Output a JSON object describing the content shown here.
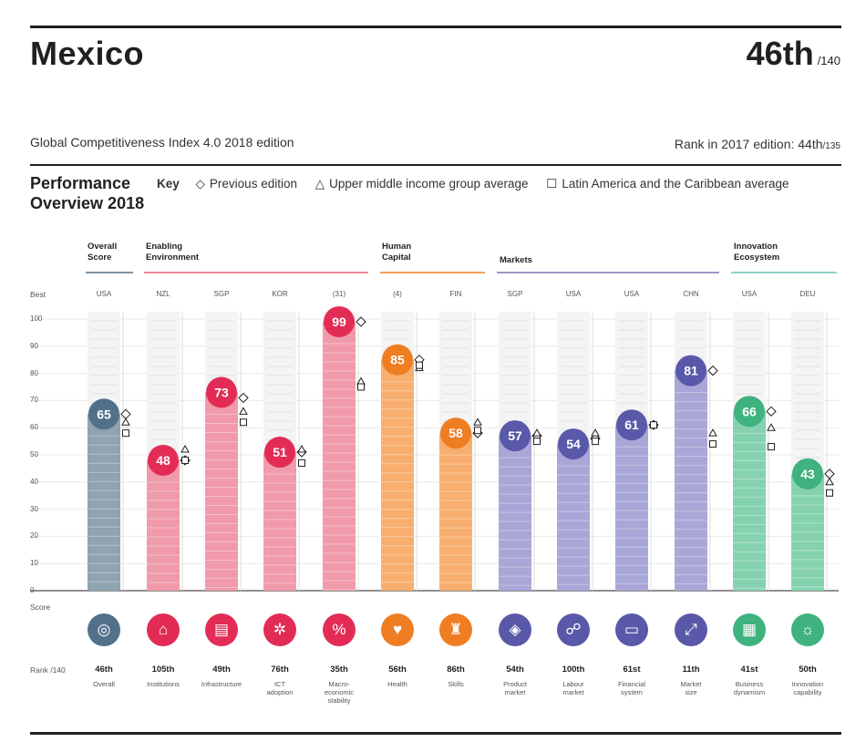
{
  "header": {
    "country": "Mexico",
    "rank": "46th",
    "rank_of": "/140",
    "edition": "Global Competitiveness Index 4.0 2018 edition",
    "prev_rank_label": "Rank in 2017 edition: 44th",
    "prev_rank_of": "/135"
  },
  "overview": {
    "title_line1": "Performance",
    "title_line2": "Overview 2018",
    "key_label": "Key",
    "key_items": [
      "Previous edition",
      "Upper middle income group average",
      "Latin America and the Caribbean average"
    ]
  },
  "groups": [
    {
      "label_line1": "Overall",
      "label_line2": "Score",
      "color": "#7f95a6"
    },
    {
      "label_line1": "Enabling",
      "label_line2": "Environment",
      "color": "#e88a9b"
    },
    {
      "label_line1": "Human",
      "label_line2": "Capital",
      "color": "#f0a15c"
    },
    {
      "label_line1": "Markets",
      "label_line2": "",
      "color": "#9b98c9"
    },
    {
      "label_line1": "Innovation",
      "label_line2": "Ecosystem",
      "color": "#8fd1c6"
    }
  ],
  "left_labels": {
    "best": "Best",
    "score": "Score",
    "rank": "Rank /140"
  },
  "chart_data": {
    "type": "bar",
    "ylim": [
      0,
      100
    ],
    "yticks": [
      "100",
      "90",
      "80",
      "70",
      "60",
      "50",
      "40",
      "30",
      "20",
      "10",
      "0"
    ],
    "categories": [
      "Overall",
      "Institutions",
      "Infrastructure",
      "ICT adoption",
      "Macro-economic stability",
      "Health",
      "Skills",
      "Product market",
      "Labour market",
      "Financial system",
      "Market size",
      "Business dynamism",
      "Innovation capability"
    ],
    "category_lines": [
      [
        "Overall"
      ],
      [
        "Institutions"
      ],
      [
        "Infrastructure"
      ],
      [
        "ICT",
        "adoption"
      ],
      [
        "Macro-",
        "economic",
        "stability"
      ],
      [
        "Health"
      ],
      [
        "Skills"
      ],
      [
        "Product",
        "market"
      ],
      [
        "Labour",
        "market"
      ],
      [
        "Financial",
        "system"
      ],
      [
        "Market",
        "size"
      ],
      [
        "Business",
        "dynamism"
      ],
      [
        "Innovation",
        "capability"
      ]
    ],
    "best": [
      "USA",
      "NZL",
      "SGP",
      "KOR",
      "(31)",
      "(4)",
      "FIN",
      "SGP",
      "USA",
      "USA",
      "CHN",
      "USA",
      "DEU"
    ],
    "ranks": [
      "46th",
      "105th",
      "49th",
      "76th",
      "35th",
      "56th",
      "86th",
      "54th",
      "100th",
      "61st",
      "11th",
      "41st",
      "50th"
    ],
    "series": [
      {
        "name": "Score",
        "values": [
          65,
          48,
          73,
          51,
          99,
          85,
          58,
          57,
          54,
          61,
          81,
          66,
          43
        ]
      },
      {
        "name": "Previous edition",
        "values": [
          65,
          48,
          71,
          51,
          99,
          85,
          58,
          57,
          56,
          61,
          81,
          66,
          43
        ]
      },
      {
        "name": "Upper middle income group average",
        "values": [
          62,
          52,
          66,
          52,
          77,
          82,
          62,
          58,
          58,
          61,
          58,
          60,
          40
        ]
      },
      {
        "name": "Latin America and the Caribbean average",
        "values": [
          58,
          48,
          62,
          47,
          75,
          83,
          59,
          55,
          55,
          61,
          54,
          53,
          36
        ]
      }
    ],
    "colors": [
      "#52708a",
      "#e22c56",
      "#e22c56",
      "#e22c56",
      "#e22c56",
      "#ef7d22",
      "#ef7d22",
      "#5a58a8",
      "#5a58a8",
      "#5a58a8",
      "#5a58a8",
      "#3fb27f",
      "#3fb27f"
    ],
    "bar_colors": [
      "#8fa3b1",
      "#f09aab",
      "#f09aab",
      "#f09aab",
      "#f09aab",
      "#f7ae6e",
      "#f7ae6e",
      "#a9a7d7",
      "#a9a7d7",
      "#a9a7d7",
      "#a9a7d7",
      "#86d2b0",
      "#86d2b0"
    ],
    "icons": [
      "target-icon",
      "bank-icon",
      "building-icon",
      "chip-icon",
      "percent-icon",
      "heart-icon",
      "graduation-icon",
      "tag-icon",
      "people-icon",
      "card-icon",
      "expand-icon",
      "chart-icon",
      "bulb-icon"
    ]
  }
}
